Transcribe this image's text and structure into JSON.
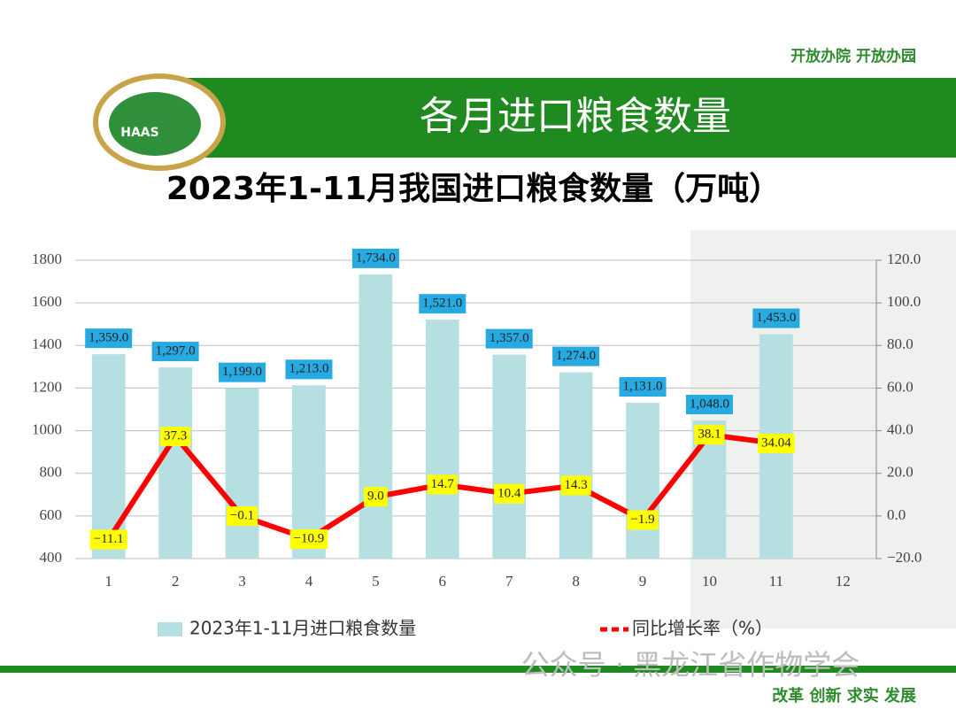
{
  "slogan": "开放办院  开放办园",
  "banner_title": "各月进口粮食数量",
  "logo_text": "HAAS",
  "watermark": "公众号 · 黑龙江省作物学会",
  "motto": "改革 创新 求实  发展",
  "chart_data": {
    "type": "bar",
    "title": "2023年1-11月我国进口粮食数量（万吨）",
    "categories": [
      "1",
      "2",
      "3",
      "4",
      "5",
      "6",
      "7",
      "8",
      "9",
      "10",
      "11",
      "12"
    ],
    "series": [
      {
        "name": "2023年1-11月进口粮食数量",
        "type": "bar",
        "color": "#b5dfe0",
        "values": [
          1359,
          1297,
          1199,
          1213,
          1734,
          1521,
          1357,
          1274,
          1131,
          1048,
          1453,
          null
        ],
        "value_labels": [
          "1,359.0",
          "1,297.0",
          "1,199.0",
          "1,213.0",
          "1,734.0",
          "1,521.0",
          "1,357.0",
          "1,274.0",
          "1,131.0",
          "1,048.0",
          "1,453.0",
          null
        ]
      },
      {
        "name": "同比增长率（%）",
        "type": "line",
        "axis": "y2",
        "color": "#ff0000",
        "values": [
          -11.1,
          37.3,
          -0.1,
          -10.9,
          9,
          14.7,
          10.4,
          14.3,
          -1.9,
          38.1,
          34.04,
          null
        ],
        "value_labels": [
          "−11.1",
          "37.3",
          "−0.1",
          "−10.9",
          "9.0",
          "14.7",
          "10.4",
          "14.3",
          "−1.9",
          "38.1",
          "34.04",
          null
        ]
      }
    ],
    "ylim": [
      400,
      1800
    ],
    "yticks": [
      400,
      600,
      800,
      1000,
      1200,
      1400,
      1600,
      1800
    ],
    "y2lim": [
      -20,
      120
    ],
    "y2ticks": [
      {
        "value": -20,
        "label": "−20.0"
      },
      {
        "value": 0,
        "label": "0.0"
      },
      {
        "value": 20,
        "label": "20.0"
      },
      {
        "value": 40,
        "label": "40.0"
      },
      {
        "value": 60,
        "label": "60.0"
      },
      {
        "value": 80,
        "label": "80.0"
      },
      {
        "value": 100,
        "label": "100.0"
      },
      {
        "value": 120,
        "label": "120.0"
      }
    ],
    "grid": true
  }
}
